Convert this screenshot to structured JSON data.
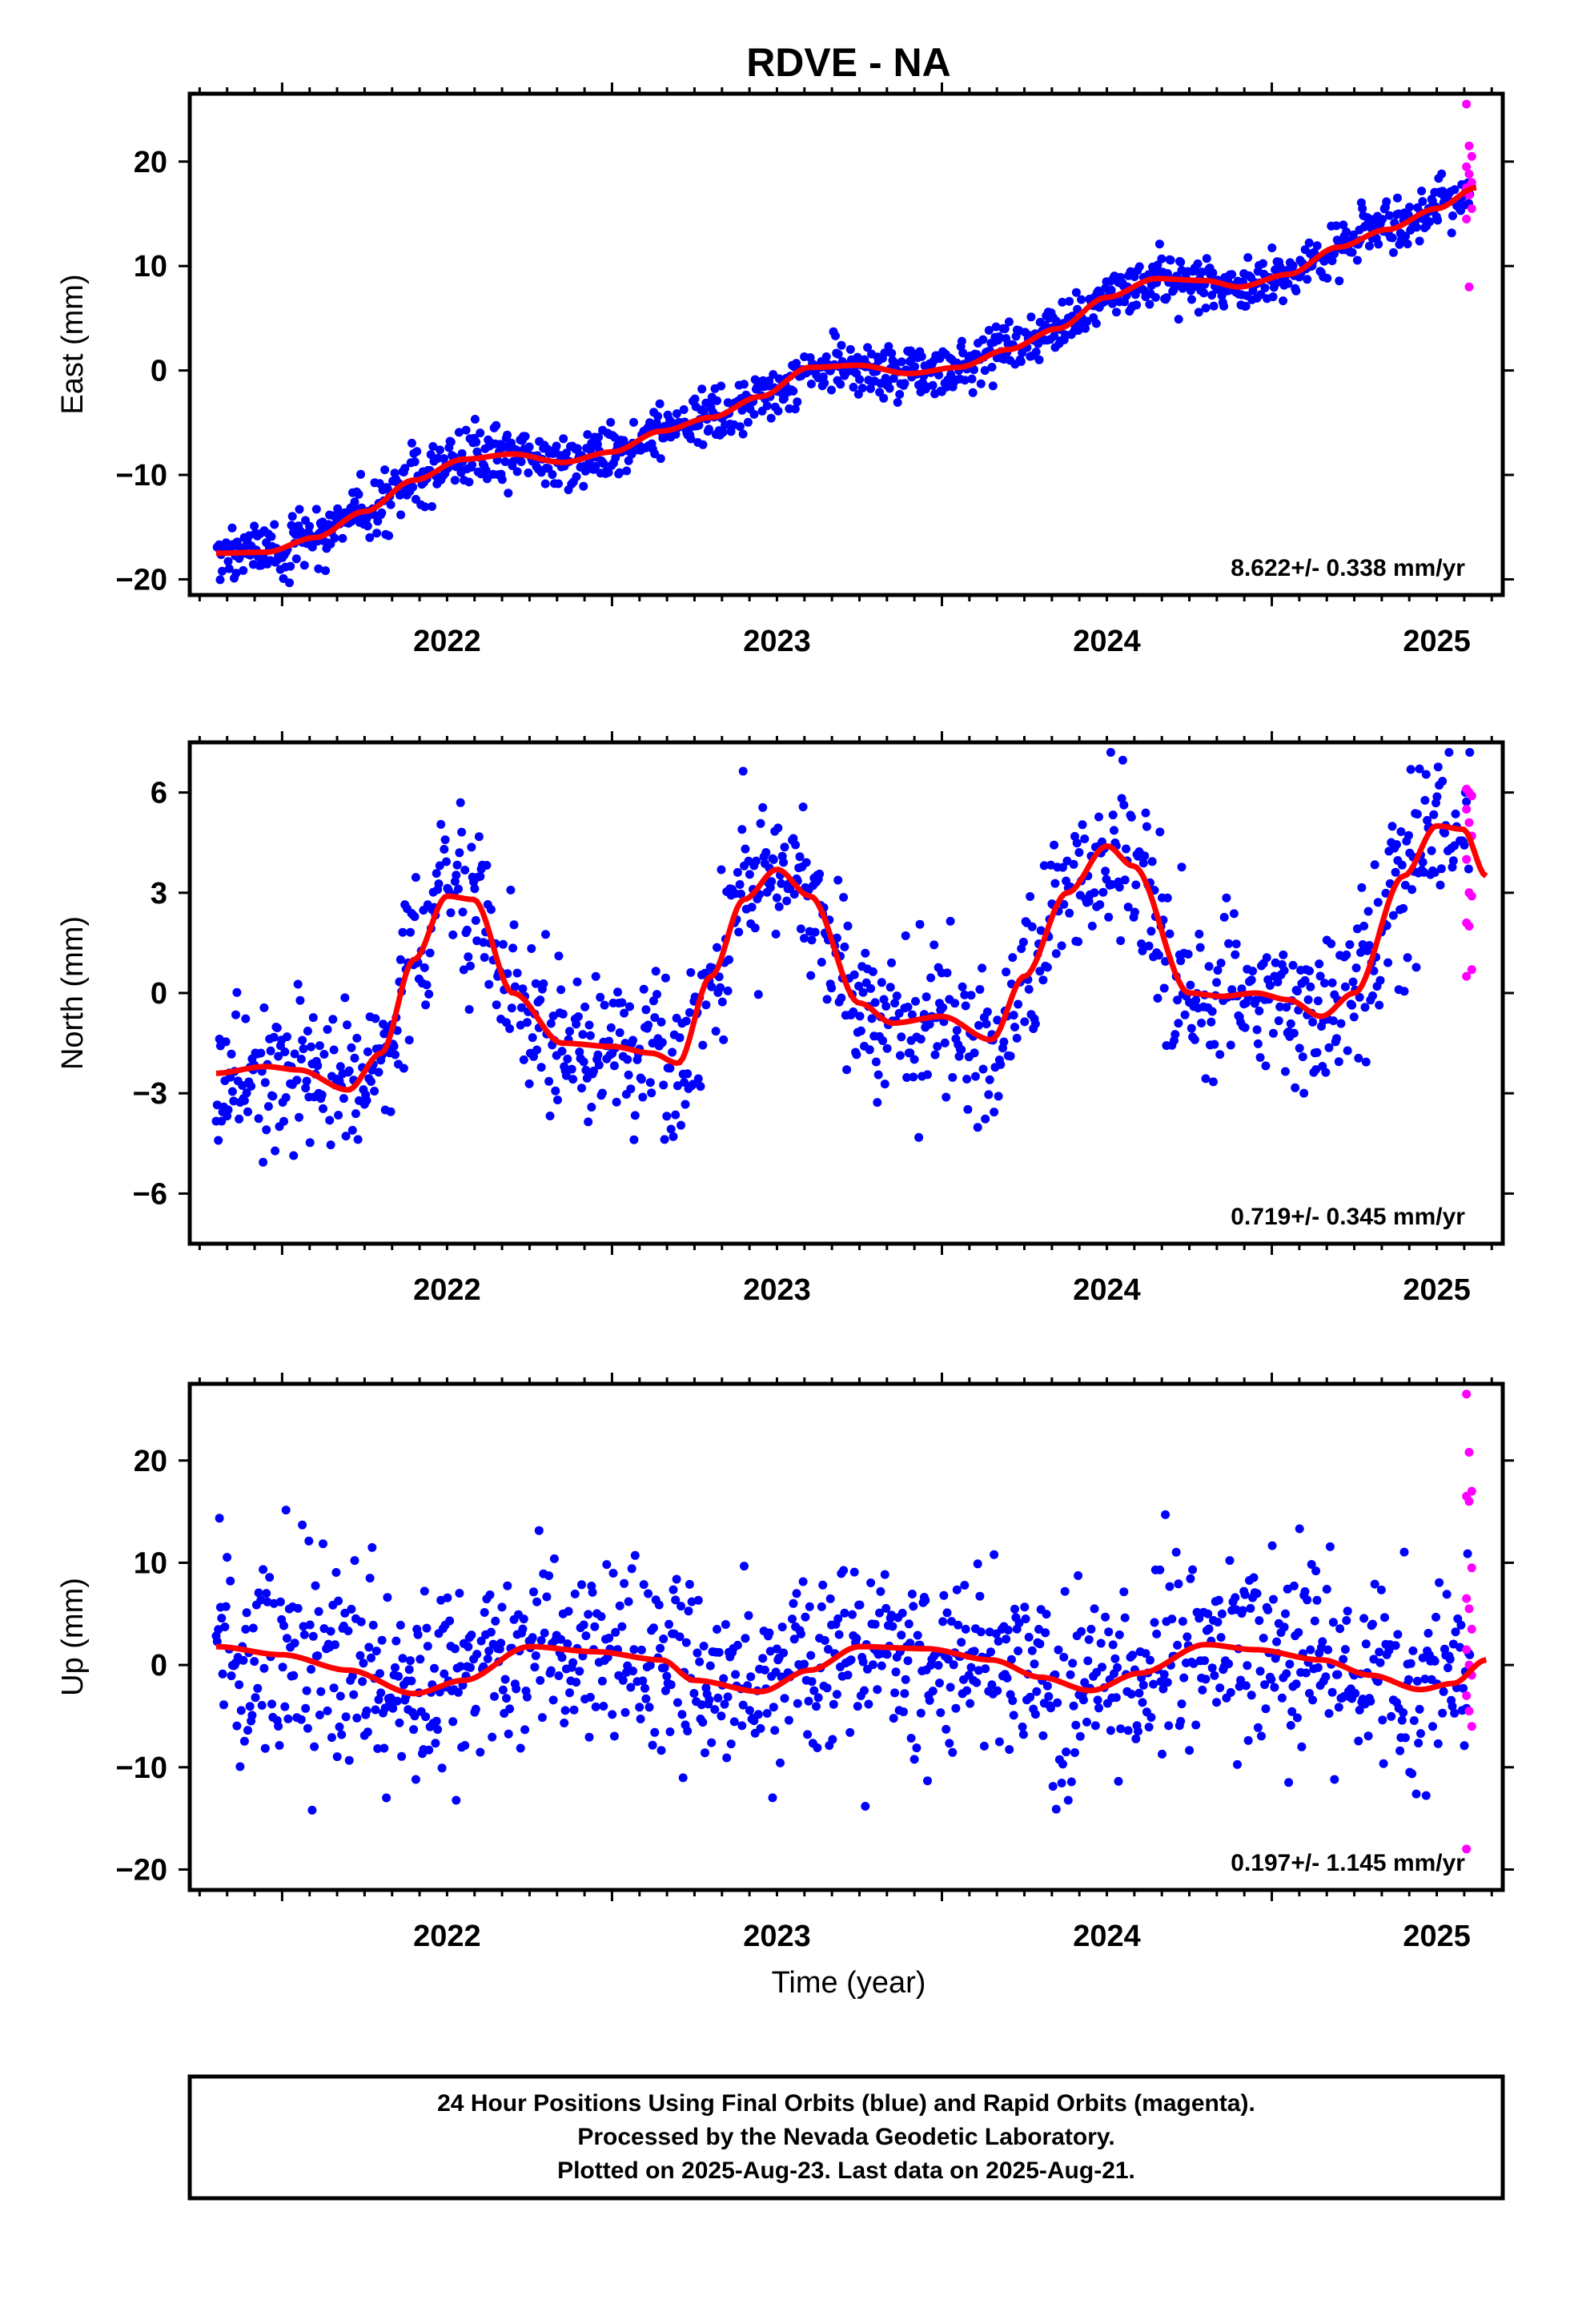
{
  "chart_data": {
    "title": "RDVE - NA",
    "xlabel": "Time (year)",
    "xlim": [
      2021.72,
      2025.7
    ],
    "xticks": [
      2022,
      2023,
      2024,
      2025
    ],
    "xtick_labels": [
      "2022",
      "2023",
      "2024",
      "2025"
    ],
    "colors": {
      "final": "#0000ff",
      "rapid": "#ff00ff",
      "model": "#ff0000"
    },
    "panels": [
      {
        "type": "scatter",
        "ylabel": "East (mm)",
        "ylim": [
          -21.5,
          26.5
        ],
        "yticks": [
          -20,
          -10,
          0,
          10,
          20
        ],
        "ytick_labels": [
          "−20",
          "−10",
          "0",
          "10",
          "20"
        ],
        "rate": "8.622+/- 0.338 mm/yr",
        "model": [
          [
            2021.8,
            -17.5
          ],
          [
            2021.95,
            -17.4
          ],
          [
            2022.1,
            -16.0
          ],
          [
            2022.25,
            -13.5
          ],
          [
            2022.4,
            -10.5
          ],
          [
            2022.55,
            -8.5
          ],
          [
            2022.7,
            -8.0
          ],
          [
            2022.85,
            -8.8
          ],
          [
            2023.0,
            -7.8
          ],
          [
            2023.15,
            -5.8
          ],
          [
            2023.3,
            -4.5
          ],
          [
            2023.45,
            -2.5
          ],
          [
            2023.6,
            0.3
          ],
          [
            2023.75,
            0.5
          ],
          [
            2023.9,
            -0.3
          ],
          [
            2024.05,
            0.3
          ],
          [
            2024.2,
            2.0
          ],
          [
            2024.35,
            4.0
          ],
          [
            2024.5,
            7.0
          ],
          [
            2024.65,
            8.8
          ],
          [
            2024.8,
            8.6
          ],
          [
            2024.9,
            8.0
          ],
          [
            2025.05,
            9.2
          ],
          [
            2025.2,
            11.8
          ],
          [
            2025.35,
            13.5
          ],
          [
            2025.5,
            15.5
          ],
          [
            2025.62,
            17.5
          ]
        ],
        "noise": 1.3,
        "rapid": [
          25.5,
          21.5,
          20.5,
          19.5,
          18.8,
          18.0,
          17.5,
          16.8,
          15.5,
          14.5,
          8.0
        ]
      },
      {
        "type": "scatter",
        "ylabel": "North (mm)",
        "ylim": [
          -7.5,
          7.5
        ],
        "yticks": [
          -6,
          -3,
          0,
          3,
          6
        ],
        "ytick_labels": [
          "−6",
          "−3",
          "0",
          "3",
          "6"
        ],
        "rate": "0.719+/- 0.345 mm/yr",
        "model": [
          [
            2021.8,
            -2.4
          ],
          [
            2021.95,
            -2.2
          ],
          [
            2022.05,
            -2.3
          ],
          [
            2022.2,
            -2.9
          ],
          [
            2022.3,
            -1.8
          ],
          [
            2022.4,
            1.0
          ],
          [
            2022.5,
            2.9
          ],
          [
            2022.58,
            2.8
          ],
          [
            2022.7,
            0.0
          ],
          [
            2022.85,
            -1.5
          ],
          [
            2023.0,
            -1.6
          ],
          [
            2023.12,
            -1.8
          ],
          [
            2023.2,
            -2.1
          ],
          [
            2023.3,
            0.5
          ],
          [
            2023.4,
            2.8
          ],
          [
            2023.5,
            3.7
          ],
          [
            2023.6,
            2.9
          ],
          [
            2023.75,
            -0.3
          ],
          [
            2023.85,
            -0.9
          ],
          [
            2024.0,
            -0.7
          ],
          [
            2024.15,
            -1.4
          ],
          [
            2024.25,
            0.5
          ],
          [
            2024.38,
            3.0
          ],
          [
            2024.5,
            4.4
          ],
          [
            2024.58,
            3.8
          ],
          [
            2024.75,
            0.0
          ],
          [
            2024.85,
            -0.1
          ],
          [
            2024.95,
            0.0
          ],
          [
            2025.05,
            -0.2
          ],
          [
            2025.15,
            -0.7
          ],
          [
            2025.25,
            0.0
          ],
          [
            2025.4,
            3.5
          ],
          [
            2025.5,
            5.0
          ],
          [
            2025.58,
            4.9
          ],
          [
            2025.65,
            3.5
          ]
        ],
        "noise": 1.2,
        "rapid": [
          6.1,
          6.0,
          5.9,
          5.5,
          5.1,
          4.7,
          4.0,
          3.0,
          2.9,
          2.1,
          2.0,
          0.7,
          0.5
        ]
      },
      {
        "type": "scatter",
        "ylabel": "Up (mm)",
        "ylim": [
          -22,
          27.5
        ],
        "yticks": [
          -20,
          -10,
          0,
          10,
          20
        ],
        "ytick_labels": [
          "−20",
          "−10",
          "0",
          "10",
          "20"
        ],
        "rate": "0.197+/- 1.145 mm/yr",
        "model": [
          [
            2021.8,
            1.8
          ],
          [
            2022.0,
            1.0
          ],
          [
            2022.2,
            -0.5
          ],
          [
            2022.4,
            -2.8
          ],
          [
            2022.55,
            -1.5
          ],
          [
            2022.75,
            1.8
          ],
          [
            2022.95,
            1.3
          ],
          [
            2023.15,
            0.5
          ],
          [
            2023.25,
            -1.5
          ],
          [
            2023.45,
            -2.6
          ],
          [
            2023.6,
            -0.5
          ],
          [
            2023.75,
            1.8
          ],
          [
            2023.95,
            1.6
          ],
          [
            2024.15,
            0.5
          ],
          [
            2024.3,
            -1.2
          ],
          [
            2024.45,
            -2.5
          ],
          [
            2024.6,
            -0.8
          ],
          [
            2024.8,
            2.0
          ],
          [
            2024.95,
            1.5
          ],
          [
            2025.15,
            0.5
          ],
          [
            2025.3,
            -1.0
          ],
          [
            2025.45,
            -2.4
          ],
          [
            2025.55,
            -1.8
          ],
          [
            2025.65,
            0.5
          ]
        ],
        "noise": 4.8,
        "rapid": [
          26.5,
          20.8,
          17.0,
          16.5,
          16.0,
          9.5,
          6.5,
          5.5,
          3.5,
          1.5,
          0.0,
          -1.0,
          -3.0,
          -4.5,
          -6.0,
          -18.0
        ]
      }
    ],
    "footer": [
      "24 Hour Positions Using Final Orbits (blue) and Rapid Orbits (magenta).",
      "Processed by the Nevada Geodetic Laboratory.",
      "Plotted on 2025-Aug-23. Last data on 2025-Aug-21."
    ]
  }
}
